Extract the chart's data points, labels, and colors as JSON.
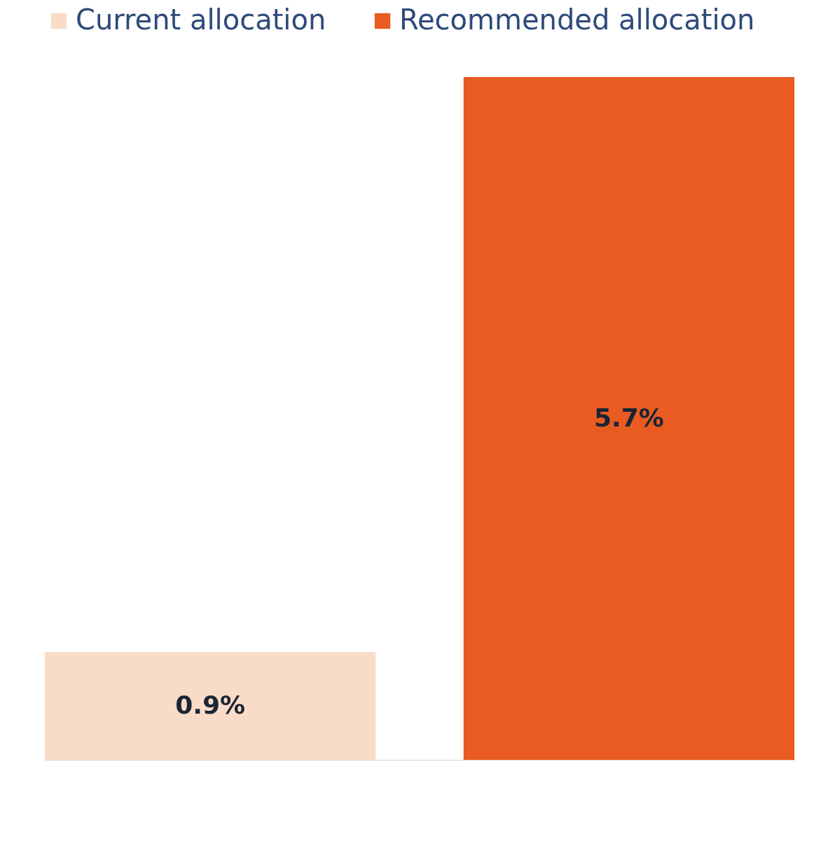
{
  "chart_data": {
    "type": "bar",
    "categories": [
      null
    ],
    "series": [
      {
        "name": "Current allocation",
        "color": "#f9dcc8",
        "values": [
          0.9
        ],
        "value_labels": [
          "0.9%"
        ]
      },
      {
        "name": "Recommended allocation",
        "color": "#e95b20",
        "values": [
          5.7
        ],
        "value_labels": [
          "5.7%"
        ]
      }
    ],
    "legend": "top"
  }
}
